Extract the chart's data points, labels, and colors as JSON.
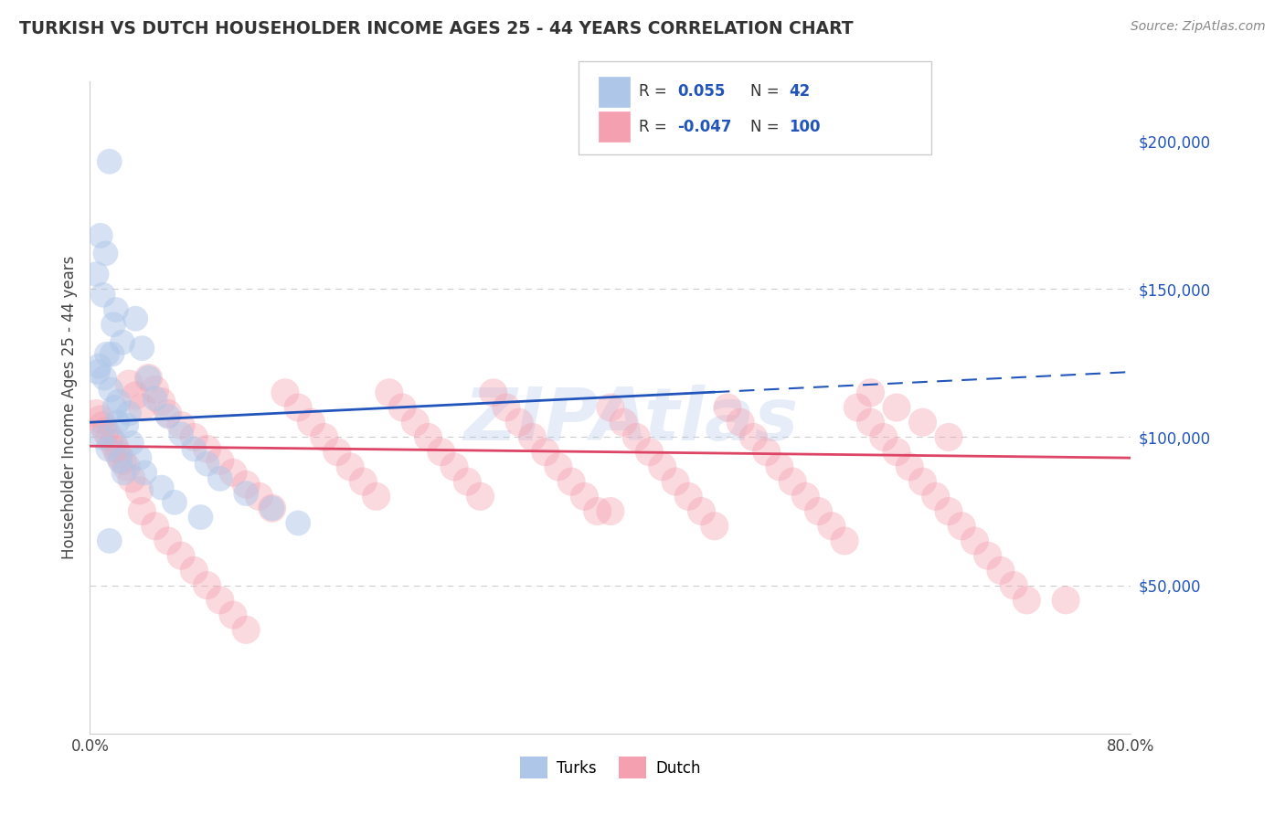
{
  "title": "TURKISH VS DUTCH HOUSEHOLDER INCOME AGES 25 - 44 YEARS CORRELATION CHART",
  "source_text": "Source: ZipAtlas.com",
  "ylabel": "Householder Income Ages 25 - 44 years",
  "xlim": [
    0.0,
    80.0
  ],
  "ylim": [
    0,
    220000
  ],
  "turks_R": 0.055,
  "turks_N": 42,
  "dutch_R": -0.047,
  "dutch_N": 100,
  "turks_color": "#aec6e8",
  "dutch_color": "#f4a0b0",
  "turks_line_color": "#2255bb",
  "dutch_line_color": "#dd4466",
  "legend_turks_label": "Turks",
  "legend_dutch_label": "Dutch",
  "watermark": "ZIPAtlas",
  "grid_color": "#cccccc",
  "turks_x": [
    1.5,
    0.8,
    1.2,
    0.5,
    1.0,
    2.0,
    1.8,
    2.5,
    1.3,
    0.7,
    1.1,
    1.6,
    2.2,
    3.0,
    2.8,
    0.9,
    1.4,
    1.7,
    2.3,
    2.6,
    3.5,
    4.0,
    4.5,
    5.0,
    6.0,
    7.0,
    8.0,
    9.0,
    10.0,
    12.0,
    14.0,
    16.0,
    0.6,
    1.9,
    2.1,
    3.2,
    3.8,
    4.2,
    5.5,
    6.5,
    8.5,
    1.5
  ],
  "turks_y": [
    193000,
    168000,
    162000,
    155000,
    148000,
    143000,
    138000,
    132000,
    128000,
    124000,
    120000,
    116000,
    112000,
    108000,
    104000,
    100000,
    96000,
    128000,
    92000,
    88000,
    140000,
    130000,
    120000,
    113000,
    107000,
    101000,
    96000,
    91000,
    86000,
    81000,
    76000,
    71000,
    122000,
    110000,
    105000,
    98000,
    93000,
    88000,
    83000,
    78000,
    73000,
    65000
  ],
  "dutch_x": [
    0.5,
    1.0,
    1.5,
    2.0,
    2.5,
    3.0,
    3.5,
    4.0,
    0.8,
    1.2,
    1.8,
    2.2,
    2.8,
    3.2,
    3.8,
    4.5,
    5.0,
    5.5,
    6.0,
    7.0,
    8.0,
    9.0,
    10.0,
    11.0,
    12.0,
    13.0,
    14.0,
    15.0,
    16.0,
    17.0,
    18.0,
    19.0,
    20.0,
    21.0,
    22.0,
    23.0,
    24.0,
    25.0,
    26.0,
    27.0,
    28.0,
    29.0,
    30.0,
    31.0,
    32.0,
    33.0,
    34.0,
    35.0,
    36.0,
    37.0,
    38.0,
    39.0,
    40.0,
    41.0,
    42.0,
    43.0,
    44.0,
    45.0,
    46.0,
    47.0,
    48.0,
    49.0,
    50.0,
    51.0,
    52.0,
    53.0,
    54.0,
    55.0,
    56.0,
    57.0,
    58.0,
    59.0,
    60.0,
    61.0,
    62.0,
    63.0,
    64.0,
    65.0,
    66.0,
    67.0,
    68.0,
    69.0,
    70.0,
    71.0,
    72.0,
    4.0,
    5.0,
    6.0,
    7.0,
    8.0,
    9.0,
    10.0,
    11.0,
    12.0,
    60.0,
    62.0,
    64.0,
    66.0,
    75.0,
    40.0
  ],
  "dutch_y": [
    108000,
    104000,
    100000,
    96000,
    92000,
    118000,
    114000,
    110000,
    106000,
    102000,
    98000,
    94000,
    90000,
    86000,
    82000,
    120000,
    116000,
    112000,
    108000,
    104000,
    100000,
    96000,
    92000,
    88000,
    84000,
    80000,
    76000,
    115000,
    110000,
    105000,
    100000,
    95000,
    90000,
    85000,
    80000,
    115000,
    110000,
    105000,
    100000,
    95000,
    90000,
    85000,
    80000,
    115000,
    110000,
    105000,
    100000,
    95000,
    90000,
    85000,
    80000,
    75000,
    110000,
    105000,
    100000,
    95000,
    90000,
    85000,
    80000,
    75000,
    70000,
    110000,
    105000,
    100000,
    95000,
    90000,
    85000,
    80000,
    75000,
    70000,
    65000,
    110000,
    105000,
    100000,
    95000,
    90000,
    85000,
    80000,
    75000,
    70000,
    65000,
    60000,
    55000,
    50000,
    45000,
    75000,
    70000,
    65000,
    60000,
    55000,
    50000,
    45000,
    40000,
    35000,
    115000,
    110000,
    105000,
    100000,
    45000,
    75000
  ],
  "turks_line_x0": 0.0,
  "turks_line_y0": 105000,
  "turks_line_x1": 80.0,
  "turks_line_y1": 122000,
  "turks_solid_end_x": 48.0,
  "dutch_line_x0": 0.0,
  "dutch_line_y0": 97000,
  "dutch_line_x1": 80.0,
  "dutch_line_y1": 93000
}
